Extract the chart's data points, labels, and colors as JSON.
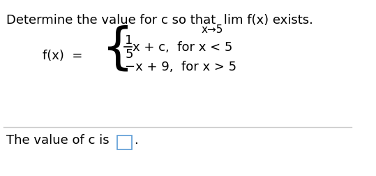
{
  "title_line1": "Determine the value for c so that  lim f(x) exists.",
  "title_line2": "x→5",
  "fx_label": "f(x)  =",
  "piece1_num": "1",
  "piece1_denom": "5",
  "piece1_rest": "x + c,  for x < 5",
  "piece2": "−x + 9,  for x > 5",
  "footer": "The value of c is",
  "bg_color": "#ffffff",
  "text_color": "#000000",
  "box_color": "#5b9bd5",
  "divider_color": "#cccccc",
  "font_size_title": 13,
  "font_size_body": 13,
  "font_size_small": 11
}
